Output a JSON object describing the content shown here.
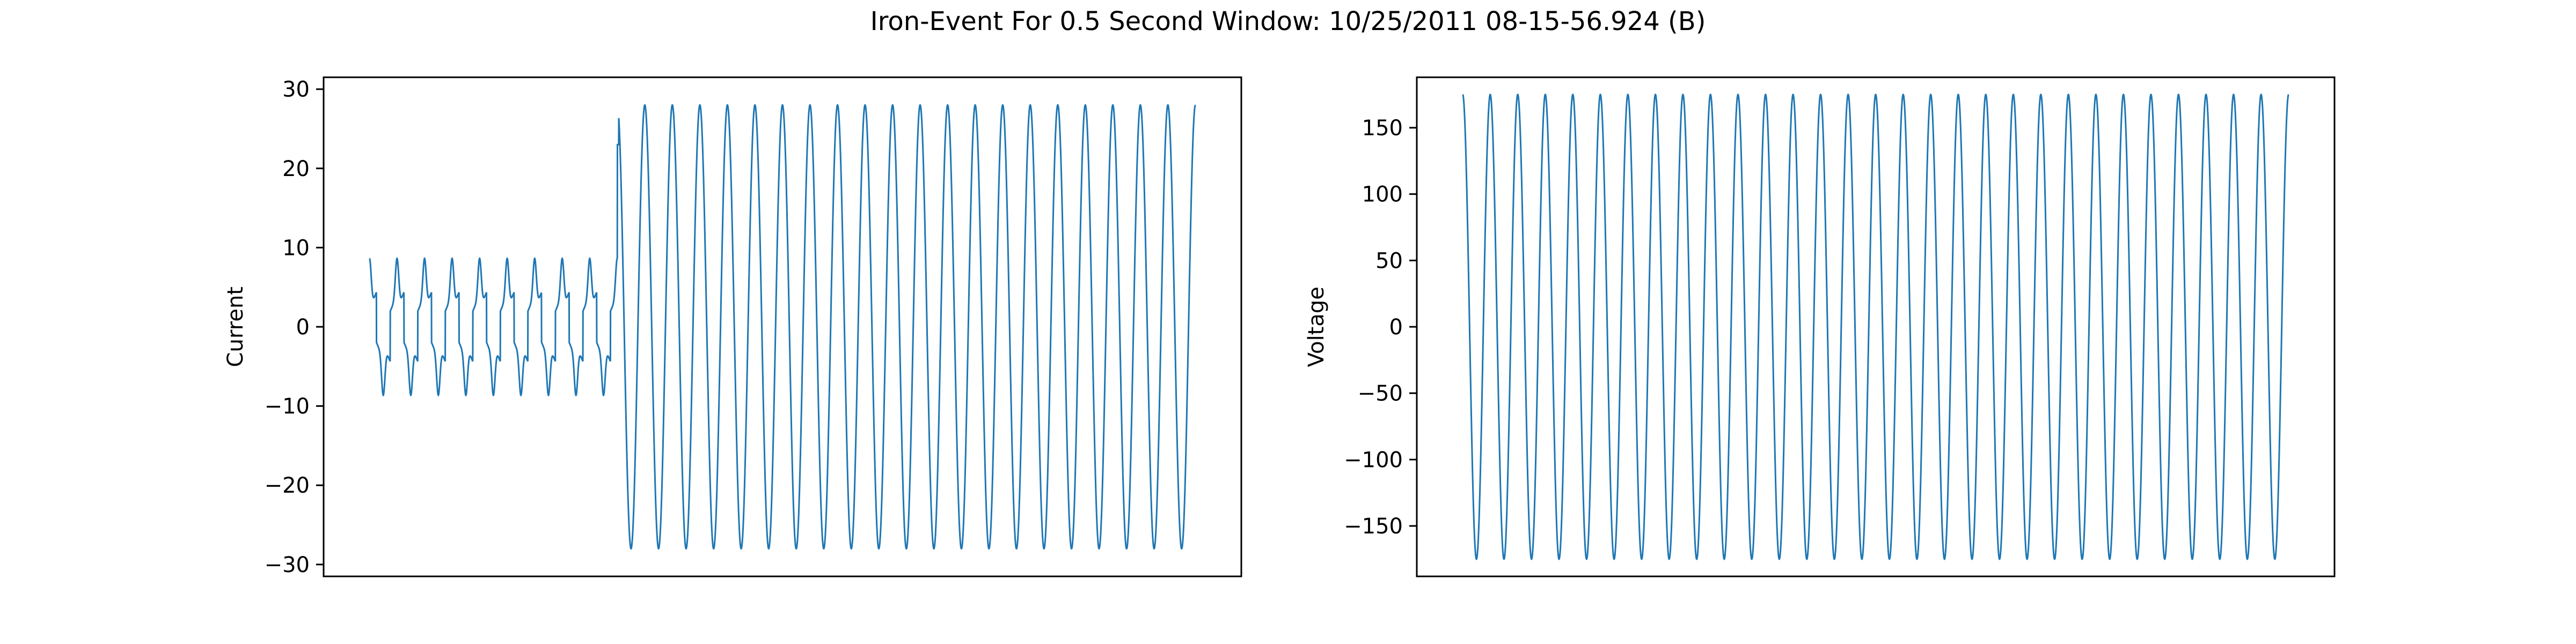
{
  "figure": {
    "title": "Iron-Event For 0.5 Second Window: 10/25/2011 08-15-56.924 (B)",
    "line_color": "#1f77b4"
  },
  "chart_data": [
    {
      "type": "line",
      "title": "",
      "xlabel": "",
      "ylabel": "Current",
      "ylim": [
        -31.5,
        31.5
      ],
      "yticks": [
        -30,
        -20,
        -10,
        0,
        10,
        20,
        30
      ],
      "ytick_labels": [
        "−30",
        "−20",
        "−10",
        "0",
        "10",
        "20",
        "30"
      ],
      "xticks_visible": false,
      "grid": false,
      "legend": "none",
      "x_range": [
        0,
        0.5
      ],
      "segments": [
        {
          "t_start": 0.0,
          "t_end": 0.15,
          "waveform": "distorted-inrush",
          "frequency_hz": 60,
          "peak": 12,
          "trough": -12,
          "plateau": 3.5
        },
        {
          "t_start": 0.15,
          "t_end": 0.5,
          "waveform": "sinusoid",
          "frequency_hz": 60,
          "peak": 28,
          "trough": -28,
          "first_spike": 23
        }
      ],
      "end_value": 26
    },
    {
      "type": "line",
      "title": "",
      "xlabel": "",
      "ylabel": "Voltage",
      "ylim": [
        -188,
        188
      ],
      "yticks": [
        -150,
        -100,
        -50,
        0,
        50,
        100,
        150
      ],
      "ytick_labels": [
        "−150",
        "−100",
        "−50",
        "0",
        "50",
        "100",
        "150"
      ],
      "xticks_visible": false,
      "grid": false,
      "legend": "none",
      "x_range": [
        0,
        0.5
      ],
      "segments": [
        {
          "t_start": 0.0,
          "t_end": 0.5,
          "waveform": "sinusoid",
          "frequency_hz": 60,
          "amplitude": 175
        }
      ]
    }
  ]
}
